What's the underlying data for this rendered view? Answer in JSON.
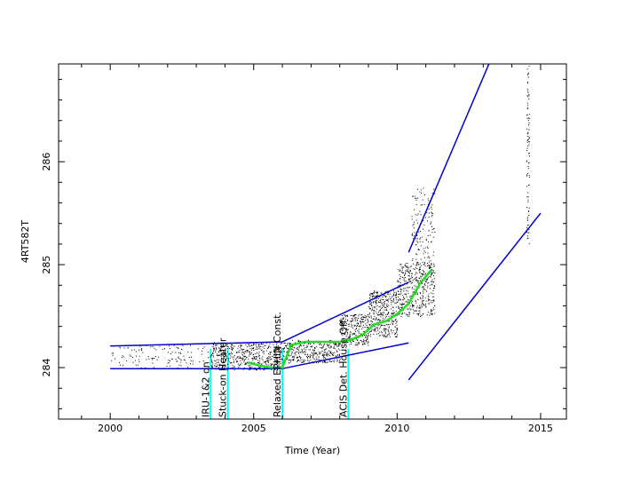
{
  "chart_data": {
    "type": "scatter",
    "xlabel": "Time (Year)",
    "ylabel": "4RT582T",
    "xlim": [
      1998.2,
      2015.9
    ],
    "ylim": [
      283.5,
      286.95
    ],
    "x_ticks": [
      2000,
      2005,
      2010,
      2015
    ],
    "y_ticks": [
      284,
      285,
      286
    ],
    "grid": false,
    "series": [
      {
        "kind": "scatter",
        "color": "#000000",
        "bands": [
          {
            "x": [
              2000.0,
              2003.5
            ],
            "y": [
              284.0,
              284.22
            ],
            "n": 120
          },
          {
            "x": [
              2003.5,
              2006.0
            ],
            "y": [
              283.98,
              284.25
            ],
            "n": 520
          },
          {
            "x": [
              2006.0,
              2008.0
            ],
            "y": [
              284.05,
              284.27
            ],
            "n": 380
          },
          {
            "x": [
              2008.0,
              2009.0
            ],
            "y": [
              284.22,
              284.52
            ],
            "n": 260
          },
          {
            "x": [
              2009.0,
              2010.0
            ],
            "y": [
              284.3,
              284.75
            ],
            "n": 360
          },
          {
            "x": [
              2010.0,
              2011.3
            ],
            "y": [
              284.5,
              285.02
            ],
            "n": 420
          },
          {
            "x": [
              2010.5,
              2011.3
            ],
            "y": [
              284.85,
              285.75
            ],
            "n": 160
          },
          {
            "x": [
              2014.5,
              2014.6
            ],
            "y": [
              285.2,
              286.95
            ],
            "n": 90
          }
        ]
      },
      {
        "kind": "line",
        "color": "#22dd22",
        "x": [
          2004.8,
          2005.2,
          2005.6,
          2006.0,
          2006.3,
          2006.8,
          2007.5,
          2008.0,
          2008.4,
          2008.8,
          2009.2,
          2009.6,
          2010.0,
          2010.4,
          2010.8,
          2011.2
        ],
        "y": [
          284.05,
          284.02,
          284.0,
          284.0,
          284.22,
          284.25,
          284.25,
          284.25,
          284.27,
          284.32,
          284.42,
          284.45,
          284.52,
          284.62,
          284.82,
          284.95
        ]
      },
      {
        "kind": "line",
        "color": "#0000cc",
        "segments": [
          {
            "x": [
              2000.0,
              2006.0
            ],
            "y": [
              284.21,
              284.25
            ]
          },
          {
            "x": [
              2000.0,
              2006.0
            ],
            "y": [
              283.99,
              283.99
            ]
          },
          {
            "x": [
              2006.0,
              2010.4
            ],
            "y": [
              284.25,
              284.83
            ]
          },
          {
            "x": [
              2006.0,
              2010.4
            ],
            "y": [
              283.99,
              284.24
            ]
          },
          {
            "x": [
              2010.4,
              2013.2
            ],
            "y": [
              285.12,
              286.95
            ]
          },
          {
            "x": [
              2010.4,
              2015.0
            ],
            "y": [
              283.88,
              285.5
            ]
          }
        ]
      }
    ],
    "annotations": [
      {
        "x": 2003.5,
        "text": "IRU-1&2 on"
      },
      {
        "x": 2004.1,
        "text": "Stuck-on Heater"
      },
      {
        "x": 2006.0,
        "text": "Relaxed EPHIN Const."
      },
      {
        "x": 2008.3,
        "text": "ACIS Det. House Off"
      }
    ],
    "annotation_line_color": "#00ffff"
  }
}
